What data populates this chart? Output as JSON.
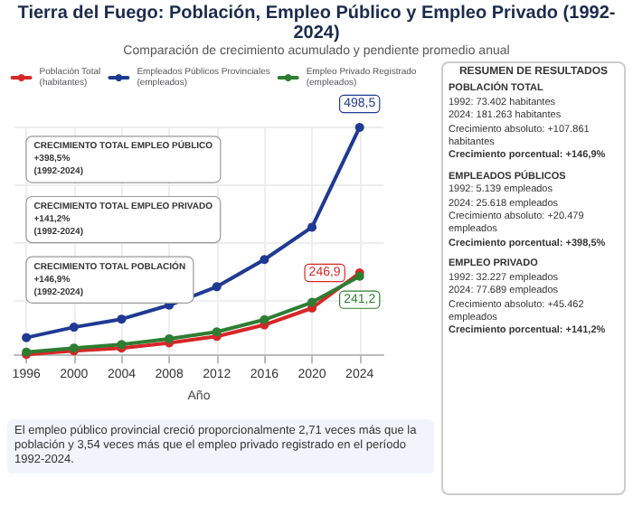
{
  "chart_data": [
    {
      "type": "line",
      "title": "Tierra del Fuego: Población, Empleo Público y Empleo Privado (1992-2024)",
      "subtitle": "Comparación de crecimiento acumulado y pendiente promedio anual",
      "xlabel": "Año",
      "x": [
        1996,
        2000,
        2004,
        2008,
        2012,
        2016,
        2020,
        2024
      ],
      "xlim": [
        1995,
        2026
      ],
      "xticks": [
        1996,
        2000,
        2004,
        2008,
        2012,
        2016,
        2020,
        2024
      ],
      "tick_labels": "x",
      "grid": true,
      "legend": "top",
      "marker": "circle",
      "line_style": "solid",
      "series": [
        {
          "name": "Población Total\n(habitantes)",
          "color": "#d62728",
          "values": [
            106,
            112,
            117,
            126,
            137,
            157,
            186,
            246.9
          ],
          "value_labels": [
            null,
            null,
            null,
            null,
            null,
            null,
            null,
            "246,9"
          ]
        },
        {
          "name": "Empleados Públicos Provinciales\n(empleados)",
          "color": "#1f3a93",
          "values": [
            135,
            153,
            167,
            191,
            223,
            270,
            326,
            498.5
          ],
          "value_labels": [
            null,
            null,
            null,
            null,
            null,
            null,
            null,
            "498,5"
          ]
        },
        {
          "name": "Empleo Privado Registrado\n(empleados)",
          "color": "#2e7d32",
          "values": [
            110,
            117,
            123,
            133,
            145,
            166,
            196,
            241.2
          ],
          "value_labels": [
            null,
            null,
            null,
            null,
            null,
            null,
            null,
            "241,2"
          ]
        }
      ],
      "annotations": [
        "CRECIMIENTO TOTAL EMPLEO PÚBLICO\n+398,5%\n(1992-2024)",
        "CRECIMIENTO TOTAL EMPLEO PRIVADO\n+141,2%\n(1992-2024)",
        "CRECIMIENTO TOTAL POBLACIÓN\n+146,9%\n(1992-2024)",
        "El empleo público provincial creció proporcionalmente 2,71 veces más que la población y 3,54 veces más que el empleo privado registrado en el período 1992-2024."
      ]
    },
    {
      "type": "other",
      "title": "RESUMEN DE RESULTADOS",
      "annotations": [
        "POBLACIÓN TOTAL",
        "1992: 73.402 habitantes",
        "2024: 181.263 habitantes",
        "Crecimiento absoluto: +107.861 habitantes",
        "Crecimiento porcentual: +146,9%",
        "EMPLEADOS PÚBLICOS",
        "1992: 5.139 empleados",
        "2024: 25.618 empleados",
        "Crecimiento absoluto: +20.479 empleados",
        "Crecimiento porcentual: +398,5%",
        "EMPLEO PRIVADO",
        "1992: 32.227 empleados",
        "2024: 77.689 empleados",
        "Crecimiento absoluto: +45.462 empleados",
        "Crecimiento porcentual: +141,2%"
      ]
    }
  ]
}
